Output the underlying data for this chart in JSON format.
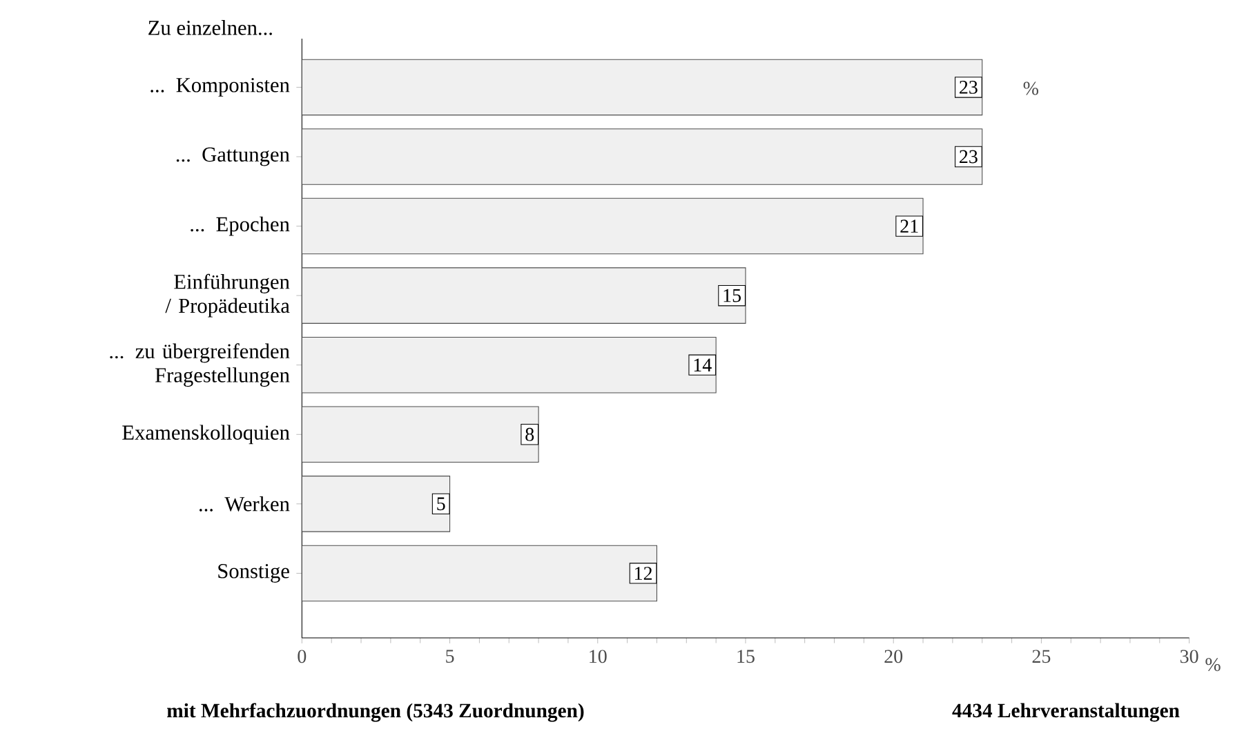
{
  "chart_data": {
    "type": "bar",
    "orientation": "horizontal",
    "ylabel": "Zu einzelnen...",
    "xlabel": "%",
    "categories": [
      "... Komponisten",
      "... Gattungen",
      "... Epochen",
      "Einführungen / Propädeutika",
      "... zu übergreifenden Fragestellungen",
      "Examenskolloquien",
      "... Werken",
      "Sonstige"
    ],
    "values": [
      23,
      23,
      21,
      15,
      14,
      8,
      5,
      12
    ],
    "color": "#f0f0f0",
    "xlim": [
      0,
      30
    ],
    "xticks": [
      0,
      5,
      10,
      15,
      20,
      25,
      30
    ],
    "data_labels": true,
    "grid": false,
    "annotations": [
      "%",
      "mit Mehrfachzuordnungen (5343 Zuordnungen)",
      "4434 Lehrveranstaltungen"
    ]
  }
}
